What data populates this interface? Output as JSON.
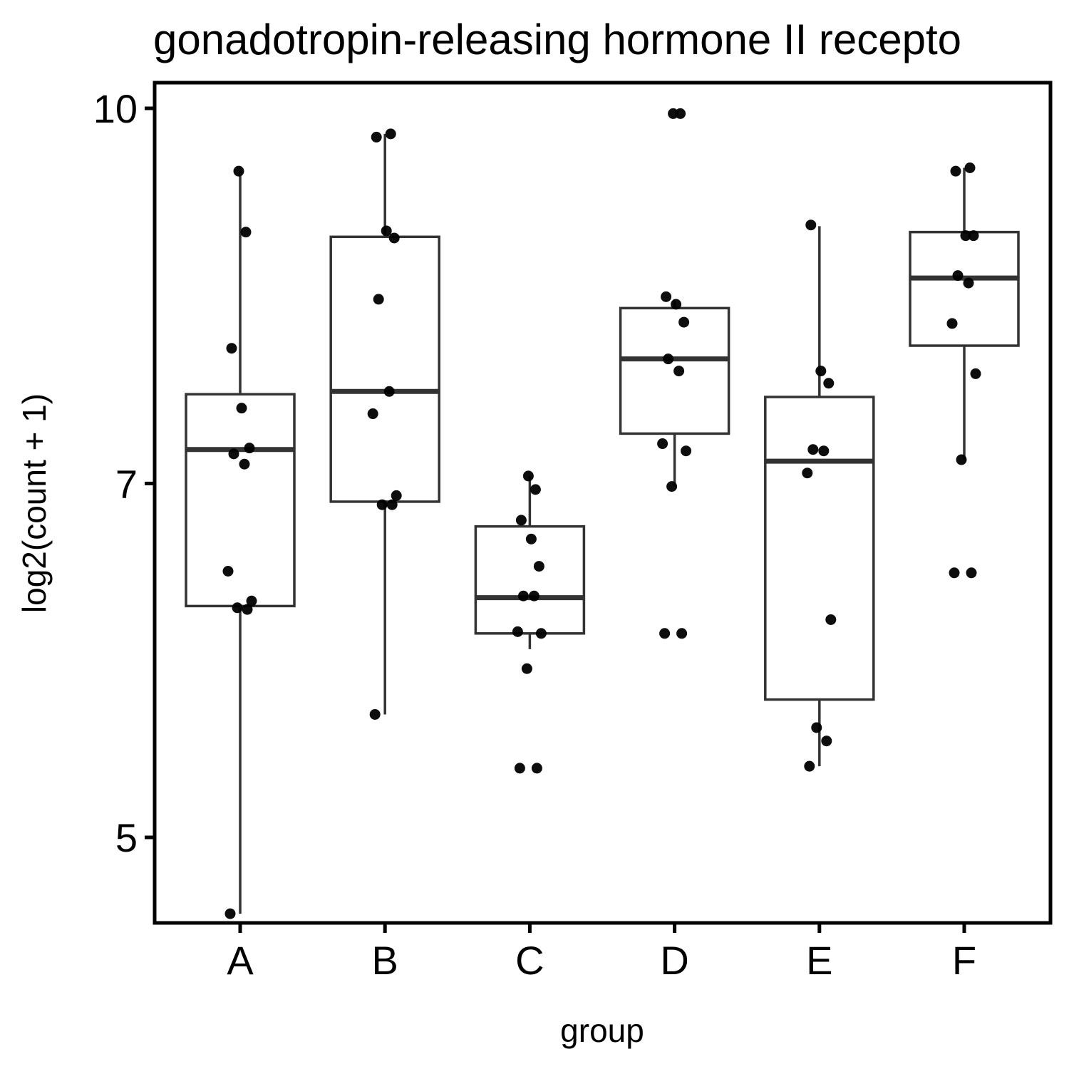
{
  "chart_data": {
    "type": "box",
    "title": "gonadotropin-releasing hormone II recepto",
    "xlabel": "group",
    "ylabel": "log2(count + 1)",
    "ylim": [
      4.4,
      10.2
    ],
    "yscale": "log",
    "yticks": [
      5,
      7,
      10
    ],
    "categories": [
      "A",
      "B",
      "C",
      "D",
      "E",
      "F"
    ],
    "boxes": [
      {
        "group": "A",
        "whisker_low": 4.65,
        "q1": 6.23,
        "median": 7.23,
        "q3": 7.62,
        "whisker_high": 9.42
      },
      {
        "group": "B",
        "whisker_low": 5.62,
        "q1": 6.88,
        "median": 7.64,
        "q3": 8.85,
        "whisker_high": 9.76
      },
      {
        "group": "C",
        "whisker_low": 5.98,
        "q1": 6.07,
        "median": 6.28,
        "q3": 6.72,
        "whisker_high": 7.05
      },
      {
        "group": "D",
        "whisker_low": 6.98,
        "q1": 7.34,
        "median": 7.88,
        "q3": 8.27,
        "whisker_high": 8.34
      },
      {
        "group": "E",
        "whisker_low": 5.35,
        "q1": 5.7,
        "median": 7.15,
        "q3": 7.6,
        "whisker_high": 8.94
      },
      {
        "group": "F",
        "whisker_low": 7.16,
        "q1": 7.98,
        "median": 8.51,
        "q3": 8.89,
        "whisker_high": 9.45
      }
    ],
    "points": [
      {
        "group": "A",
        "values": [
          4.65,
          6.21,
          6.22,
          6.26,
          6.44,
          7.13,
          7.2,
          7.24,
          7.52,
          7.96,
          8.89,
          9.42
        ]
      },
      {
        "group": "B",
        "values": [
          5.62,
          6.86,
          6.86,
          6.92,
          7.48,
          7.64,
          8.34,
          8.84,
          8.9,
          9.73,
          9.76
        ]
      },
      {
        "group": "C",
        "values": [
          5.34,
          5.34,
          5.87,
          6.07,
          6.08,
          6.29,
          6.29,
          6.47,
          6.64,
          6.76,
          6.96,
          7.05
        ]
      },
      {
        "group": "D",
        "values": [
          6.07,
          6.07,
          6.98,
          7.22,
          7.27,
          7.79,
          7.88,
          8.16,
          8.3,
          8.36,
          9.95,
          9.95
        ]
      },
      {
        "group": "E",
        "values": [
          5.35,
          5.48,
          5.55,
          6.15,
          7.07,
          7.22,
          7.23,
          7.7,
          7.79,
          8.95
        ]
      },
      {
        "group": "F",
        "values": [
          6.43,
          6.43,
          7.16,
          7.77,
          8.15,
          8.47,
          8.53,
          8.86,
          8.86,
          9.42,
          9.45
        ]
      }
    ],
    "grid": false,
    "legend": "none",
    "colors": {
      "box_outline": "#333333",
      "points": "#000000",
      "panel_border": "#000000"
    }
  }
}
